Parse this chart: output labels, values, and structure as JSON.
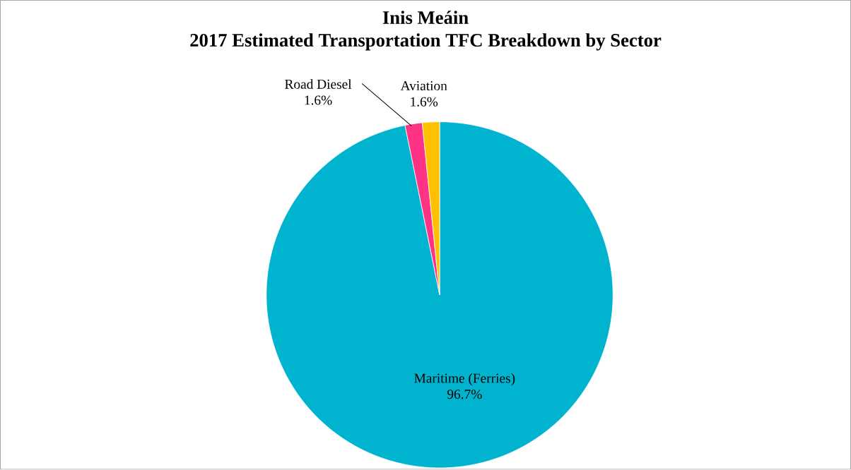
{
  "chart_data": {
    "type": "pie",
    "title": "Inis Meáin",
    "subtitle": "2017 Estimated Transportation TFC Breakdown by Sector",
    "categories": [
      "Maritime (Ferries)",
      "Road Diesel",
      "Aviation"
    ],
    "values": [
      96.7,
      1.6,
      1.6
    ],
    "colors": [
      "#00b4d0",
      "#ff3385",
      "#ffc000"
    ],
    "value_labels": [
      "96.7%",
      "1.6%",
      "1.6%"
    ]
  }
}
